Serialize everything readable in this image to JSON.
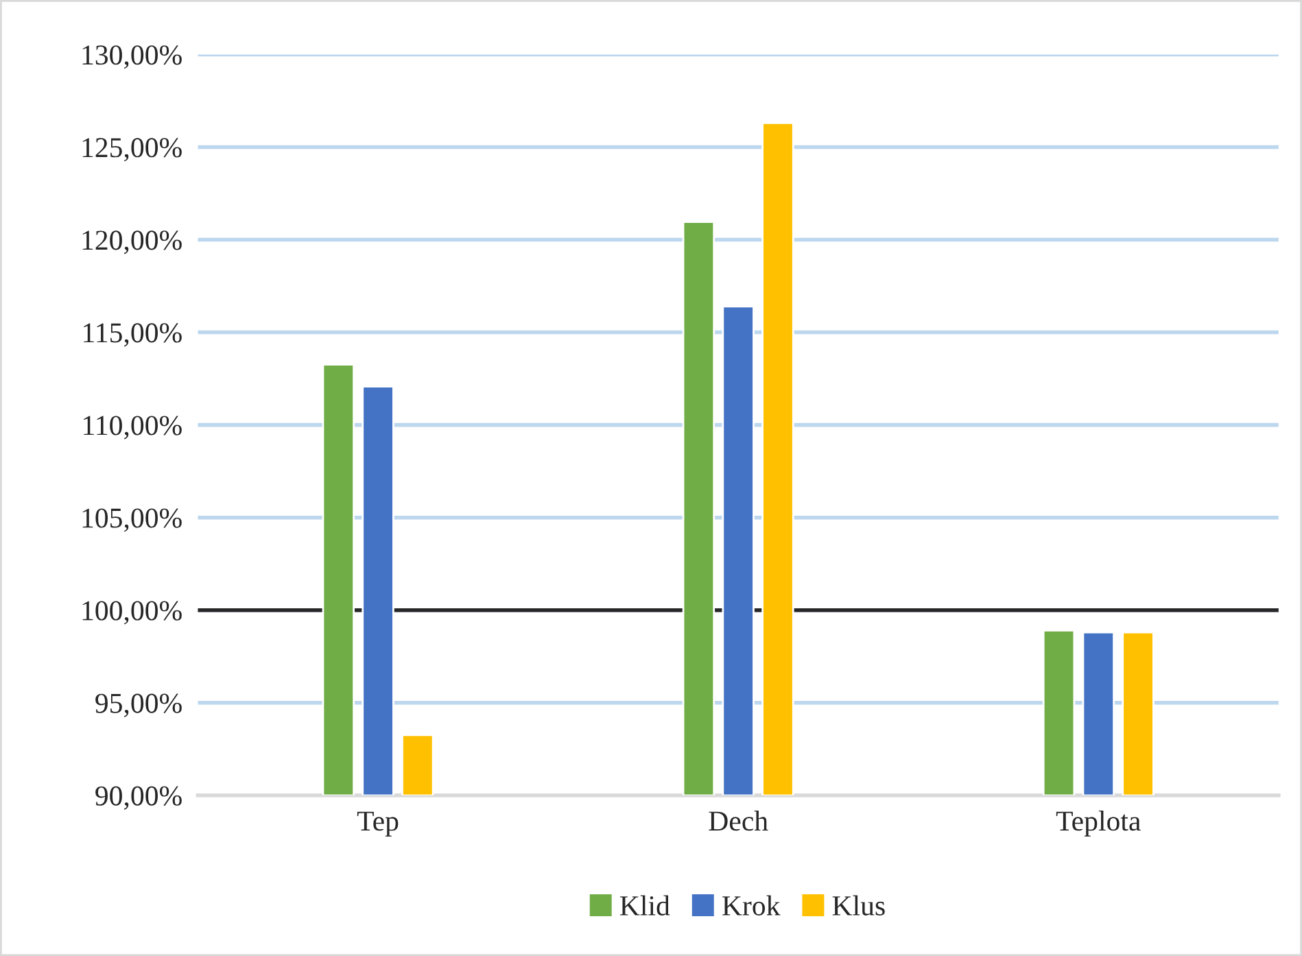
{
  "chart_data": {
    "type": "bar",
    "categories": [
      "Tep",
      "Dech",
      "Teplota"
    ],
    "series": [
      {
        "name": "Klid",
        "color": "#70ad47",
        "values": [
          113.26,
          120.96,
          98.9
        ]
      },
      {
        "name": "Krok",
        "color": "#4472c4",
        "values": [
          112.07,
          116.4,
          98.8
        ]
      },
      {
        "name": "Klus",
        "color": "#ffc000",
        "values": [
          93.26,
          126.3,
          98.8
        ]
      }
    ],
    "ylim": [
      90,
      130
    ],
    "yticks": [
      {
        "value": 90,
        "label": "90,00%"
      },
      {
        "value": 95,
        "label": "95,00%"
      },
      {
        "value": 100,
        "label": "100,00%"
      },
      {
        "value": 105,
        "label": "105,00%"
      },
      {
        "value": 110,
        "label": "110,00%"
      },
      {
        "value": 115,
        "label": "115,00%"
      },
      {
        "value": 120,
        "label": "120,00%"
      },
      {
        "value": 125,
        "label": "125,00%"
      },
      {
        "value": 130,
        "label": "130,00%"
      }
    ],
    "ref_lines": [
      {
        "axis": "y",
        "value": 100,
        "label": null,
        "color": "#262626"
      }
    ],
    "grid": "y",
    "legend": "bottom"
  }
}
